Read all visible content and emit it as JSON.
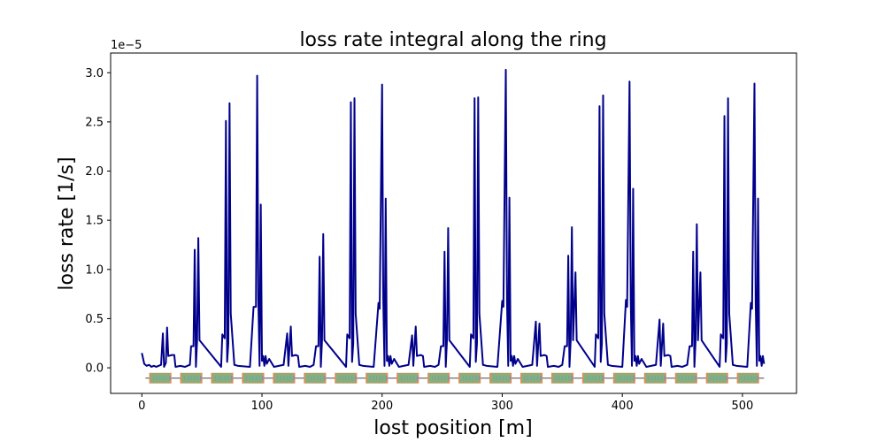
{
  "chart_data": {
    "type": "line",
    "title": "loss rate integral along the ring",
    "xlabel": "lost position [m]",
    "ylabel": "loss rate [1/s]",
    "y_offset_label": "1e−5",
    "xlim": [
      -26,
      545
    ],
    "ylim": [
      -0.26,
      3.2
    ],
    "xticks": [
      0,
      100,
      200,
      300,
      400,
      500
    ],
    "xtick_labels": [
      "0",
      "100",
      "200",
      "300",
      "400",
      "500"
    ],
    "yticks": [
      0.0,
      0.5,
      1.0,
      1.5,
      2.0,
      2.5,
      3.0
    ],
    "ytick_labels": [
      "0.0",
      "0.5",
      "1.0",
      "1.5",
      "2.0",
      "2.5",
      "3.0"
    ],
    "grid": false,
    "series_color": "#00008b",
    "series": [
      {
        "values_unit": "1e-5 1/s",
        "points": [
          [
            0,
            0.15
          ],
          [
            2,
            0.04
          ],
          [
            4,
            0.02
          ],
          [
            6,
            0.03
          ],
          [
            8,
            0.01
          ],
          [
            10,
            0.02
          ],
          [
            12,
            0.01
          ],
          [
            14,
            0.02
          ],
          [
            16,
            0.03
          ],
          [
            17.5,
            0.35
          ],
          [
            18.5,
            0.01
          ],
          [
            20,
            0.05
          ],
          [
            21,
            0.41
          ],
          [
            22,
            0.12
          ],
          [
            25,
            0.13
          ],
          [
            27,
            0.13
          ],
          [
            28,
            0.01
          ],
          [
            32,
            0.02
          ],
          [
            36,
            0.01
          ],
          [
            40,
            0.03
          ],
          [
            41,
            0.22
          ],
          [
            43,
            0.22
          ],
          [
            44,
            1.2
          ],
          [
            45,
            0.01
          ],
          [
            46,
            0.28
          ],
          [
            47,
            1.32
          ],
          [
            48,
            0.28
          ],
          [
            66,
            0.01
          ],
          [
            67,
            0.34
          ],
          [
            69,
            0.3
          ],
          [
            70,
            2.51
          ],
          [
            71,
            0.06
          ],
          [
            72,
            0.25
          ],
          [
            73,
            2.69
          ],
          [
            74,
            0.55
          ],
          [
            77,
            0.03
          ],
          [
            80,
            0.02
          ],
          [
            90,
            0.01
          ],
          [
            93,
            0.62
          ],
          [
            95,
            0.62
          ],
          [
            96,
            2.97
          ],
          [
            97,
            0.68
          ],
          [
            98,
            0.02
          ],
          [
            99,
            1.66
          ],
          [
            100,
            0.07
          ],
          [
            101,
            0.12
          ],
          [
            102,
            0.02
          ],
          [
            103,
            0.12
          ],
          [
            104,
            0.04
          ],
          [
            106,
            0.09
          ],
          [
            110,
            0.01
          ],
          [
            114,
            0.02
          ],
          [
            118,
            0.03
          ],
          [
            121,
            0.35
          ],
          [
            122,
            0.02
          ],
          [
            124,
            0.42
          ],
          [
            125,
            0.12
          ],
          [
            128,
            0.13
          ],
          [
            130,
            0.12
          ],
          [
            131,
            0.01
          ],
          [
            136,
            0.02
          ],
          [
            140,
            0.01
          ],
          [
            143,
            0.03
          ],
          [
            145,
            0.22
          ],
          [
            147,
            0.22
          ],
          [
            148,
            1.13
          ],
          [
            149,
            0.01
          ],
          [
            150,
            0.28
          ],
          [
            151,
            1.36
          ],
          [
            152,
            0.28
          ],
          [
            170,
            0.01
          ],
          [
            171,
            0.34
          ],
          [
            173,
            0.3
          ],
          [
            174,
            2.7
          ],
          [
            175,
            0.06
          ],
          [
            176,
            0.25
          ],
          [
            177,
            2.74
          ],
          [
            178,
            0.55
          ],
          [
            181,
            0.03
          ],
          [
            184,
            0.02
          ],
          [
            193,
            0.01
          ],
          [
            197,
            0.66
          ],
          [
            198,
            0.6
          ],
          [
            200,
            2.88
          ],
          [
            201,
            0.68
          ],
          [
            202,
            0.02
          ],
          [
            203,
            1.72
          ],
          [
            204,
            0.07
          ],
          [
            205,
            0.12
          ],
          [
            206,
            0.02
          ],
          [
            207,
            0.12
          ],
          [
            208,
            0.04
          ],
          [
            210,
            0.09
          ],
          [
            214,
            0.01
          ],
          [
            218,
            0.02
          ],
          [
            222,
            0.03
          ],
          [
            225,
            0.33
          ],
          [
            226,
            0.02
          ],
          [
            228,
            0.42
          ],
          [
            229,
            0.12
          ],
          [
            232,
            0.13
          ],
          [
            234,
            0.12
          ],
          [
            235,
            0.01
          ],
          [
            240,
            0.02
          ],
          [
            244,
            0.01
          ],
          [
            247,
            0.03
          ],
          [
            249,
            0.22
          ],
          [
            251,
            0.22
          ],
          [
            252,
            1.18
          ],
          [
            253,
            0.01
          ],
          [
            254,
            0.28
          ],
          [
            255,
            1.42
          ],
          [
            256,
            0.28
          ],
          [
            273,
            0.01
          ],
          [
            274,
            0.34
          ],
          [
            276,
            0.3
          ],
          [
            277,
            2.74
          ],
          [
            278,
            0.06
          ],
          [
            279,
            0.25
          ],
          [
            280,
            2.75
          ],
          [
            281,
            0.55
          ],
          [
            284,
            0.03
          ],
          [
            287,
            0.02
          ],
          [
            296,
            0.01
          ],
          [
            300,
            0.68
          ],
          [
            301,
            0.62
          ],
          [
            303,
            3.03
          ],
          [
            304,
            0.68
          ],
          [
            305,
            0.02
          ],
          [
            306,
            1.73
          ],
          [
            307,
            0.07
          ],
          [
            308,
            0.12
          ],
          [
            309,
            0.02
          ],
          [
            310,
            0.12
          ],
          [
            311,
            0.04
          ],
          [
            313,
            0.09
          ],
          [
            317,
            0.01
          ],
          [
            321,
            0.02
          ],
          [
            325,
            0.03
          ],
          [
            328,
            0.47
          ],
          [
            329,
            0.02
          ],
          [
            331,
            0.45
          ],
          [
            332,
            0.12
          ],
          [
            335,
            0.13
          ],
          [
            337,
            0.12
          ],
          [
            338,
            0.01
          ],
          [
            343,
            0.02
          ],
          [
            347,
            0.01
          ],
          [
            350,
            0.03
          ],
          [
            352,
            0.22
          ],
          [
            354,
            0.22
          ],
          [
            355,
            1.14
          ],
          [
            356,
            0.01
          ],
          [
            357,
            0.28
          ],
          [
            358,
            1.43
          ],
          [
            359,
            0.28
          ],
          [
            361,
            0.97
          ],
          [
            362,
            0.28
          ],
          [
            377,
            0.01
          ],
          [
            378,
            0.34
          ],
          [
            380,
            0.3
          ],
          [
            381,
            2.66
          ],
          [
            382,
            0.06
          ],
          [
            383,
            0.25
          ],
          [
            384,
            2.77
          ],
          [
            385,
            0.55
          ],
          [
            388,
            0.03
          ],
          [
            391,
            0.02
          ],
          [
            400,
            0.01
          ],
          [
            403,
            0.69
          ],
          [
            404,
            0.62
          ],
          [
            406,
            2.91
          ],
          [
            407,
            0.68
          ],
          [
            408,
            0.02
          ],
          [
            409,
            1.82
          ],
          [
            410,
            0.07
          ],
          [
            411,
            0.12
          ],
          [
            412,
            0.02
          ],
          [
            413,
            0.12
          ],
          [
            414,
            0.04
          ],
          [
            416,
            0.09
          ],
          [
            420,
            0.01
          ],
          [
            424,
            0.02
          ],
          [
            428,
            0.03
          ],
          [
            431,
            0.49
          ],
          [
            432,
            0.02
          ],
          [
            434,
            0.45
          ],
          [
            435,
            0.12
          ],
          [
            438,
            0.13
          ],
          [
            440,
            0.12
          ],
          [
            441,
            0.01
          ],
          [
            446,
            0.02
          ],
          [
            450,
            0.01
          ],
          [
            454,
            0.03
          ],
          [
            456,
            0.22
          ],
          [
            458,
            0.22
          ],
          [
            459,
            1.18
          ],
          [
            460,
            0.01
          ],
          [
            461,
            0.28
          ],
          [
            462,
            1.46
          ],
          [
            463,
            0.28
          ],
          [
            465,
            0.97
          ],
          [
            466,
            0.28
          ],
          [
            481,
            0.01
          ],
          [
            482,
            0.34
          ],
          [
            484,
            0.3
          ],
          [
            485,
            2.56
          ],
          [
            486,
            0.06
          ],
          [
            487,
            0.25
          ],
          [
            488,
            2.74
          ],
          [
            489,
            0.55
          ],
          [
            492,
            0.03
          ],
          [
            495,
            0.02
          ],
          [
            504,
            0.01
          ],
          [
            507,
            0.66
          ],
          [
            508,
            0.6
          ],
          [
            510,
            2.89
          ],
          [
            511,
            0.68
          ],
          [
            512,
            0.02
          ],
          [
            513,
            1.72
          ],
          [
            514,
            0.07
          ],
          [
            515,
            0.12
          ],
          [
            516,
            0.02
          ],
          [
            517,
            0.12
          ],
          [
            518,
            0.04
          ]
        ]
      }
    ],
    "lattice_band": {
      "y": -0.105,
      "x_range": [
        3,
        518
      ],
      "cells": 20,
      "colors": {
        "dipole": "#d9915c",
        "quadrupole": "#7fb27f",
        "sextupole": "#6f94c8",
        "line": "#6b6b6b"
      }
    }
  }
}
